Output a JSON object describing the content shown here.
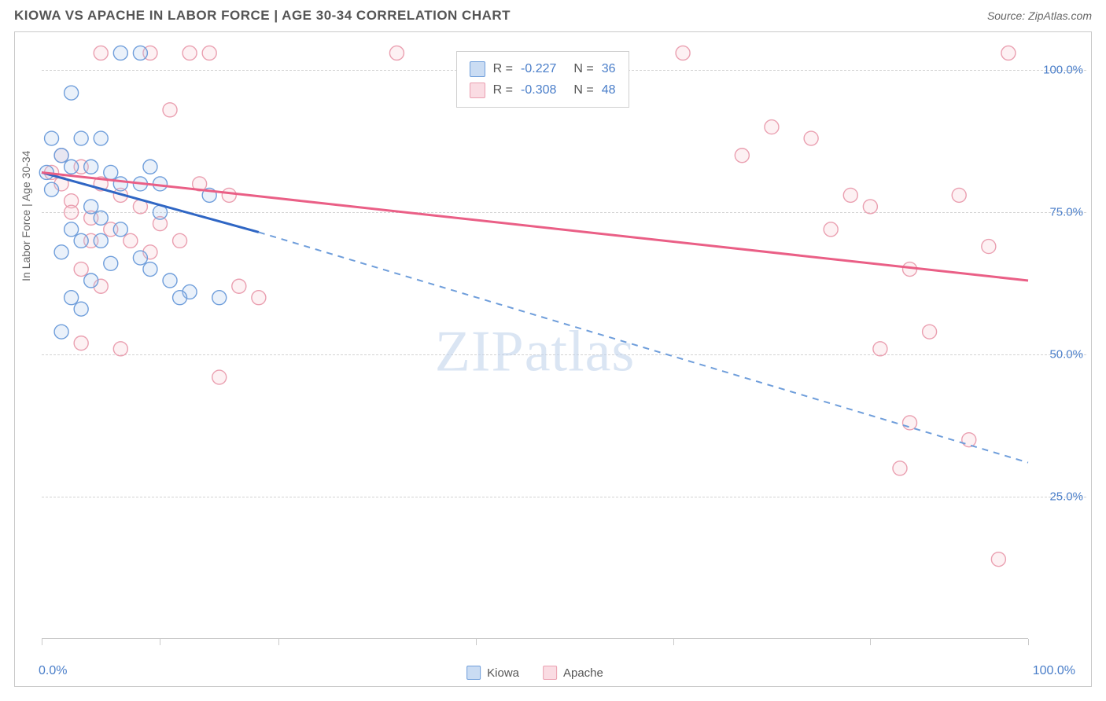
{
  "title": "KIOWA VS APACHE IN LABOR FORCE | AGE 30-34 CORRELATION CHART",
  "source_label": "Source: ZipAtlas.com",
  "watermark": "ZIPatlas",
  "chart": {
    "type": "scatter",
    "y_axis_label": "In Labor Force | Age 30-34",
    "xlim": [
      0,
      100
    ],
    "ylim": [
      0,
      105
    ],
    "x_ticks": [
      0,
      12,
      24,
      44,
      64,
      84,
      100
    ],
    "x_tick_labels_shown": {
      "min": "0.0%",
      "max": "100.0%"
    },
    "y_ticks": [
      25,
      50,
      75,
      100
    ],
    "y_tick_labels": [
      "25.0%",
      "50.0%",
      "75.0%",
      "100.0%"
    ],
    "grid_color": "#d3d3d3",
    "background_color": "#ffffff",
    "axis_color": "#c9c9c9",
    "value_text_color": "#4a7ec9",
    "label_text_color": "#666666",
    "marker_radius": 9,
    "marker_fill_opacity": 0.25,
    "marker_stroke_width": 1.4,
    "series": [
      {
        "name": "Kiowa",
        "color_stroke": "#6f9edb",
        "color_fill": "#aac6ea",
        "line_color": "#2f66c4",
        "R": "-0.227",
        "N": "36",
        "trend": {
          "x1": 0,
          "y1": 82,
          "x2_solid": 22,
          "y2_solid": 71.5,
          "x2_dash": 100,
          "y2_dash": 31
        },
        "points": [
          [
            3,
            96
          ],
          [
            8,
            103
          ],
          [
            10,
            103
          ],
          [
            1,
            88
          ],
          [
            4,
            88
          ],
          [
            6,
            88
          ],
          [
            2,
            85
          ],
          [
            3,
            83
          ],
          [
            5,
            83
          ],
          [
            7,
            82
          ],
          [
            8,
            80
          ],
          [
            10,
            80
          ],
          [
            12,
            80
          ],
          [
            5,
            76
          ],
          [
            6,
            74
          ],
          [
            8,
            72
          ],
          [
            3,
            72
          ],
          [
            4,
            70
          ],
          [
            6,
            70
          ],
          [
            2,
            68
          ],
          [
            7,
            66
          ],
          [
            10,
            67
          ],
          [
            11,
            65
          ],
          [
            13,
            63
          ],
          [
            15,
            61
          ],
          [
            5,
            63
          ],
          [
            3,
            60
          ],
          [
            4,
            58
          ],
          [
            2,
            54
          ],
          [
            14,
            60
          ],
          [
            17,
            78
          ],
          [
            12,
            75
          ],
          [
            11,
            83
          ],
          [
            18,
            60
          ],
          [
            1,
            79
          ],
          [
            0.5,
            82
          ]
        ]
      },
      {
        "name": "Apache",
        "color_stroke": "#ea9fb0",
        "color_fill": "#f6c6d1",
        "line_color": "#ea5f86",
        "R": "-0.308",
        "N": "48",
        "trend": {
          "x1": 0,
          "y1": 82,
          "x2_solid": 100,
          "y2_solid": 63,
          "x2_dash": 100,
          "y2_dash": 63
        },
        "points": [
          [
            6,
            103
          ],
          [
            11,
            103
          ],
          [
            15,
            103
          ],
          [
            17,
            103
          ],
          [
            36,
            103
          ],
          [
            65,
            103
          ],
          [
            98,
            103
          ],
          [
            2,
            85
          ],
          [
            4,
            83
          ],
          [
            6,
            80
          ],
          [
            8,
            78
          ],
          [
            10,
            76
          ],
          [
            3,
            77
          ],
          [
            5,
            74
          ],
          [
            7,
            72
          ],
          [
            9,
            70
          ],
          [
            11,
            68
          ],
          [
            4,
            65
          ],
          [
            6,
            62
          ],
          [
            13,
            93
          ],
          [
            16,
            80
          ],
          [
            19,
            78
          ],
          [
            20,
            62
          ],
          [
            22,
            60
          ],
          [
            8,
            51
          ],
          [
            4,
            52
          ],
          [
            18,
            46
          ],
          [
            74,
            90
          ],
          [
            78,
            88
          ],
          [
            71,
            85
          ],
          [
            82,
            78
          ],
          [
            84,
            76
          ],
          [
            93,
            78
          ],
          [
            96,
            69
          ],
          [
            88,
            65
          ],
          [
            85,
            51
          ],
          [
            90,
            54
          ],
          [
            88,
            38
          ],
          [
            94,
            35
          ],
          [
            87,
            30
          ],
          [
            97,
            14
          ],
          [
            80,
            72
          ],
          [
            1,
            82
          ],
          [
            2,
            80
          ],
          [
            3,
            75
          ],
          [
            5,
            70
          ],
          [
            12,
            73
          ],
          [
            14,
            70
          ]
        ]
      }
    ]
  },
  "legend": {
    "items": [
      {
        "label": "Kiowa",
        "swatch_fill": "#cadcf3",
        "swatch_border": "#6f9edb"
      },
      {
        "label": "Apache",
        "swatch_fill": "#fadce3",
        "swatch_border": "#ea9fb0"
      }
    ]
  }
}
